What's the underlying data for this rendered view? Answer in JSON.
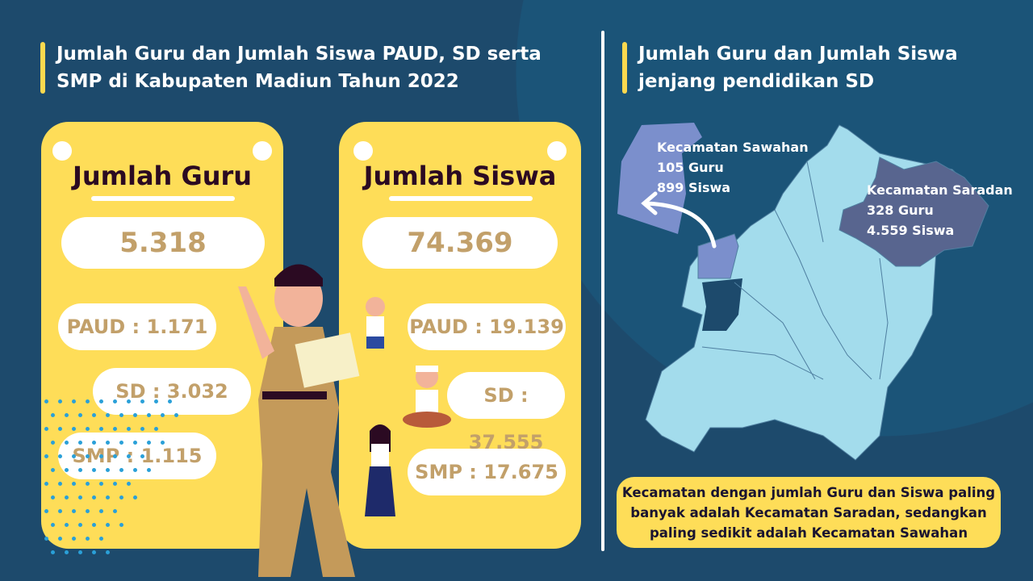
{
  "left": {
    "title": "Jumlah Guru dan Jumlah Siswa PAUD, SD serta SMP di Kabupaten Madiun Tahun 2022"
  },
  "right": {
    "title": "Jumlah Guru dan Jumlah Siswa jenjang pendidikan SD"
  },
  "guru": {
    "heading": "Jumlah Guru",
    "total": "5.318",
    "paud": "PAUD : 1.171",
    "sd": "SD : 3.032",
    "smp": "SMP : 1.115"
  },
  "siswa": {
    "heading": "Jumlah Siswa",
    "total": "74.369",
    "paud": "PAUD : 19.139",
    "sd": "SD : 37.555",
    "smp": "SMP : 17.675"
  },
  "map": {
    "sawahan": {
      "name": "Kecamatan Sawahan",
      "guru": "105 Guru",
      "siswa": "899 Siswa",
      "color": "#7b8fcc"
    },
    "saradan": {
      "name": "Kecamatan Saradan",
      "guru": "328 Guru",
      "siswa": "4.559 Siswa",
      "color": "#58658f"
    },
    "region_color": "#a3dcec"
  },
  "conclusion": "Kecamatan dengan jumlah Guru dan Siswa paling banyak adalah Kecamatan Saradan, sedangkan paling sedikit adalah Kecamatan Sawahan",
  "colors": {
    "background": "#1d4a6c",
    "card": "#fedd58",
    "accent_text": "#c2a06a"
  }
}
